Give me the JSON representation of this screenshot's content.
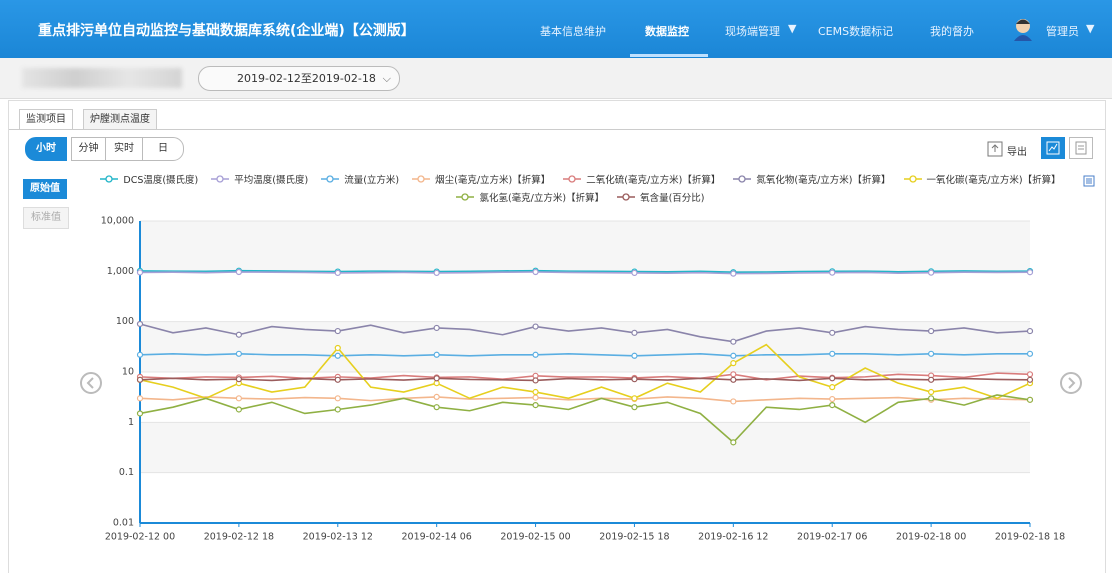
{
  "header": {
    "title": "重点排污单位自动监控与基础数据库系统(企业端)【公测版】",
    "nav": [
      "基本信息维护",
      "数据监控",
      "现场端管理",
      "CEMS数据标记",
      "我的督办"
    ],
    "user": "管理员"
  },
  "toolbar": {
    "date_range": "2019-02-12至2019-02-18"
  },
  "tabs": [
    "监测项目",
    "炉膛测点温度"
  ],
  "time_buttons": [
    "小时",
    "分钟",
    "实时",
    "日"
  ],
  "export": "导出",
  "value_buttons": [
    "原始值",
    "标准值"
  ],
  "chart_data": {
    "type": "line",
    "log_scale": true,
    "grid": true,
    "categories": [
      "2019-02-12 00",
      null,
      null,
      "2019-02-12 18",
      null,
      null,
      "2019-02-13 12",
      null,
      null,
      "2019-02-14 06",
      null,
      null,
      "2019-02-15 00",
      null,
      null,
      "2019-02-15 18",
      null,
      null,
      "2019-02-16 12",
      null,
      null,
      "2019-02-17 06",
      null,
      null,
      "2019-02-18 00",
      null,
      null,
      "2019-02-18 18"
    ],
    "ylim": [
      0.01,
      10000
    ],
    "yticks": [
      0.01,
      0.1,
      1,
      10,
      100,
      {
        "value": 1000,
        "label": "1,000"
      },
      {
        "value": 10000,
        "label": "10,000"
      }
    ],
    "series": [
      {
        "name": "DCS温度(摄氏度)",
        "color": "#22b5c8",
        "values": [
          1020,
          1010,
          1000,
          1030,
          1020,
          1000,
          990,
          1010,
          1000,
          990,
          1000,
          1020,
          1030,
          1010,
          1000,
          990,
          980,
          1000,
          960,
          970,
          990,
          1000,
          1010,
          980,
          1000,
          1020,
          1000,
          1010
        ]
      },
      {
        "name": "平均温度(摄氏度)",
        "color": "#a79fd6",
        "values": [
          950,
          960,
          940,
          970,
          960,
          950,
          930,
          940,
          950,
          930,
          940,
          960,
          970,
          950,
          940,
          930,
          920,
          940,
          900,
          910,
          930,
          940,
          950,
          920,
          940,
          960,
          950,
          960
        ]
      },
      {
        "name": "流量(立方米)",
        "color": "#5aaee2",
        "values": [
          22,
          23,
          22,
          23,
          22,
          22,
          21,
          22,
          21,
          22,
          21,
          22,
          22,
          23,
          22,
          21,
          22,
          23,
          21,
          22,
          22,
          23,
          23,
          22,
          23,
          22,
          23,
          23
        ]
      },
      {
        "name": "烟尘(毫克/立方米)【折算】",
        "color": "#f3b68c",
        "values": [
          3,
          2.8,
          3.2,
          3,
          2.9,
          3.1,
          3,
          2.7,
          3,
          3.2,
          2.9,
          3,
          3.1,
          2.8,
          3,
          2.9,
          3.2,
          3,
          2.6,
          2.8,
          3,
          2.9,
          3,
          3.1,
          2.8,
          3,
          2.9,
          2.8
        ]
      },
      {
        "name": "二氧化硫(毫克/立方米)【折算】",
        "color": "#d97c7c",
        "values": [
          8,
          7.5,
          8,
          7.8,
          8.2,
          7.5,
          8,
          7.6,
          8.5,
          7.8,
          8,
          7.2,
          8.4,
          7.9,
          8,
          7.6,
          8.1,
          7.5,
          9,
          7,
          8.3,
          7.7,
          8,
          9,
          8.5,
          7.8,
          9.5,
          9
        ]
      },
      {
        "name": "氮氧化物(毫克/立方米)【折算】",
        "color": "#8a84aa",
        "values": [
          90,
          60,
          75,
          55,
          80,
          70,
          65,
          85,
          60,
          75,
          70,
          55,
          80,
          65,
          75,
          60,
          70,
          50,
          40,
          65,
          75,
          60,
          80,
          70,
          65,
          75,
          60,
          65
        ]
      },
      {
        "name": "一氧化碳(毫克/立方米)【折算】",
        "color": "#e6cf1e",
        "values": [
          7,
          5,
          3,
          6,
          4,
          5,
          30,
          5,
          4,
          6,
          3,
          5,
          4,
          3,
          5,
          3,
          6,
          4,
          15,
          35,
          8,
          5,
          12,
          6,
          4,
          5,
          3,
          6
        ]
      },
      {
        "name": "氯化氢(毫克/立方米)【折算】",
        "color": "#8fb043",
        "values": [
          1.5,
          2,
          3,
          1.8,
          2.5,
          1.5,
          1.8,
          2.2,
          3,
          2,
          1.7,
          2.5,
          2.2,
          1.8,
          3,
          2,
          2.5,
          1.5,
          0.4,
          2,
          1.8,
          2.2,
          1,
          2.5,
          3,
          2.2,
          3.5,
          2.8
        ]
      },
      {
        "name": "氧含量(百分比)",
        "color": "#9a5c5c",
        "values": [
          7,
          7.5,
          7,
          7.2,
          6.8,
          7.4,
          7,
          7.3,
          6.9,
          7.5,
          7.1,
          7,
          6.8,
          7.4,
          7,
          7.2,
          6.9,
          7.5,
          7,
          7.3,
          6.8,
          7.5,
          7,
          7.2,
          7,
          7.4,
          7.1,
          7
        ]
      }
    ]
  }
}
